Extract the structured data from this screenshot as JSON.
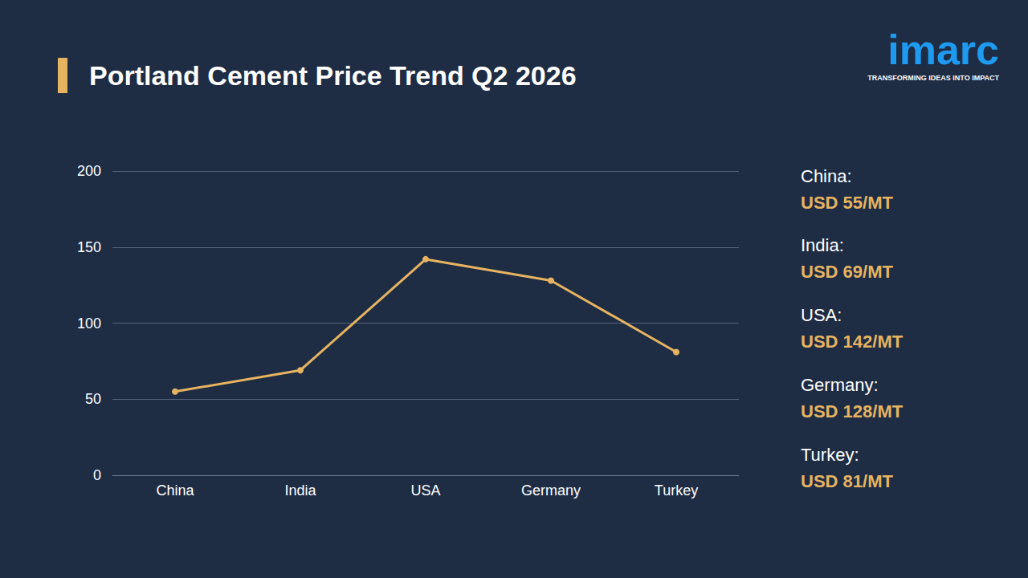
{
  "chart_data": {
    "type": "line",
    "title": "Portland Cement Price Trend Q2 2026",
    "categories": [
      "China",
      "India",
      "USA",
      "Germany",
      "Turkey"
    ],
    "values": [
      55,
      69,
      142,
      128,
      81
    ],
    "value_labels": [
      "USD 55/MT",
      "USD 69/MT",
      "USD 142/MT",
      "USD 128/MT",
      "USD 81/MT"
    ],
    "color": "#e6b461",
    "marker": "circle",
    "line_style": "solid",
    "ylim": [
      0,
      200
    ],
    "yticks": [
      0,
      50,
      100,
      150,
      200
    ],
    "grid": true,
    "data_labels": false,
    "annotations": {
      "side_labels": [
        "China:",
        "India:",
        "USA:",
        "Germany:",
        "Turkey:"
      ],
      "logo": "imarc",
      "tagline": "TRANSFORMING IDEAS INTO IMPACT"
    }
  }
}
